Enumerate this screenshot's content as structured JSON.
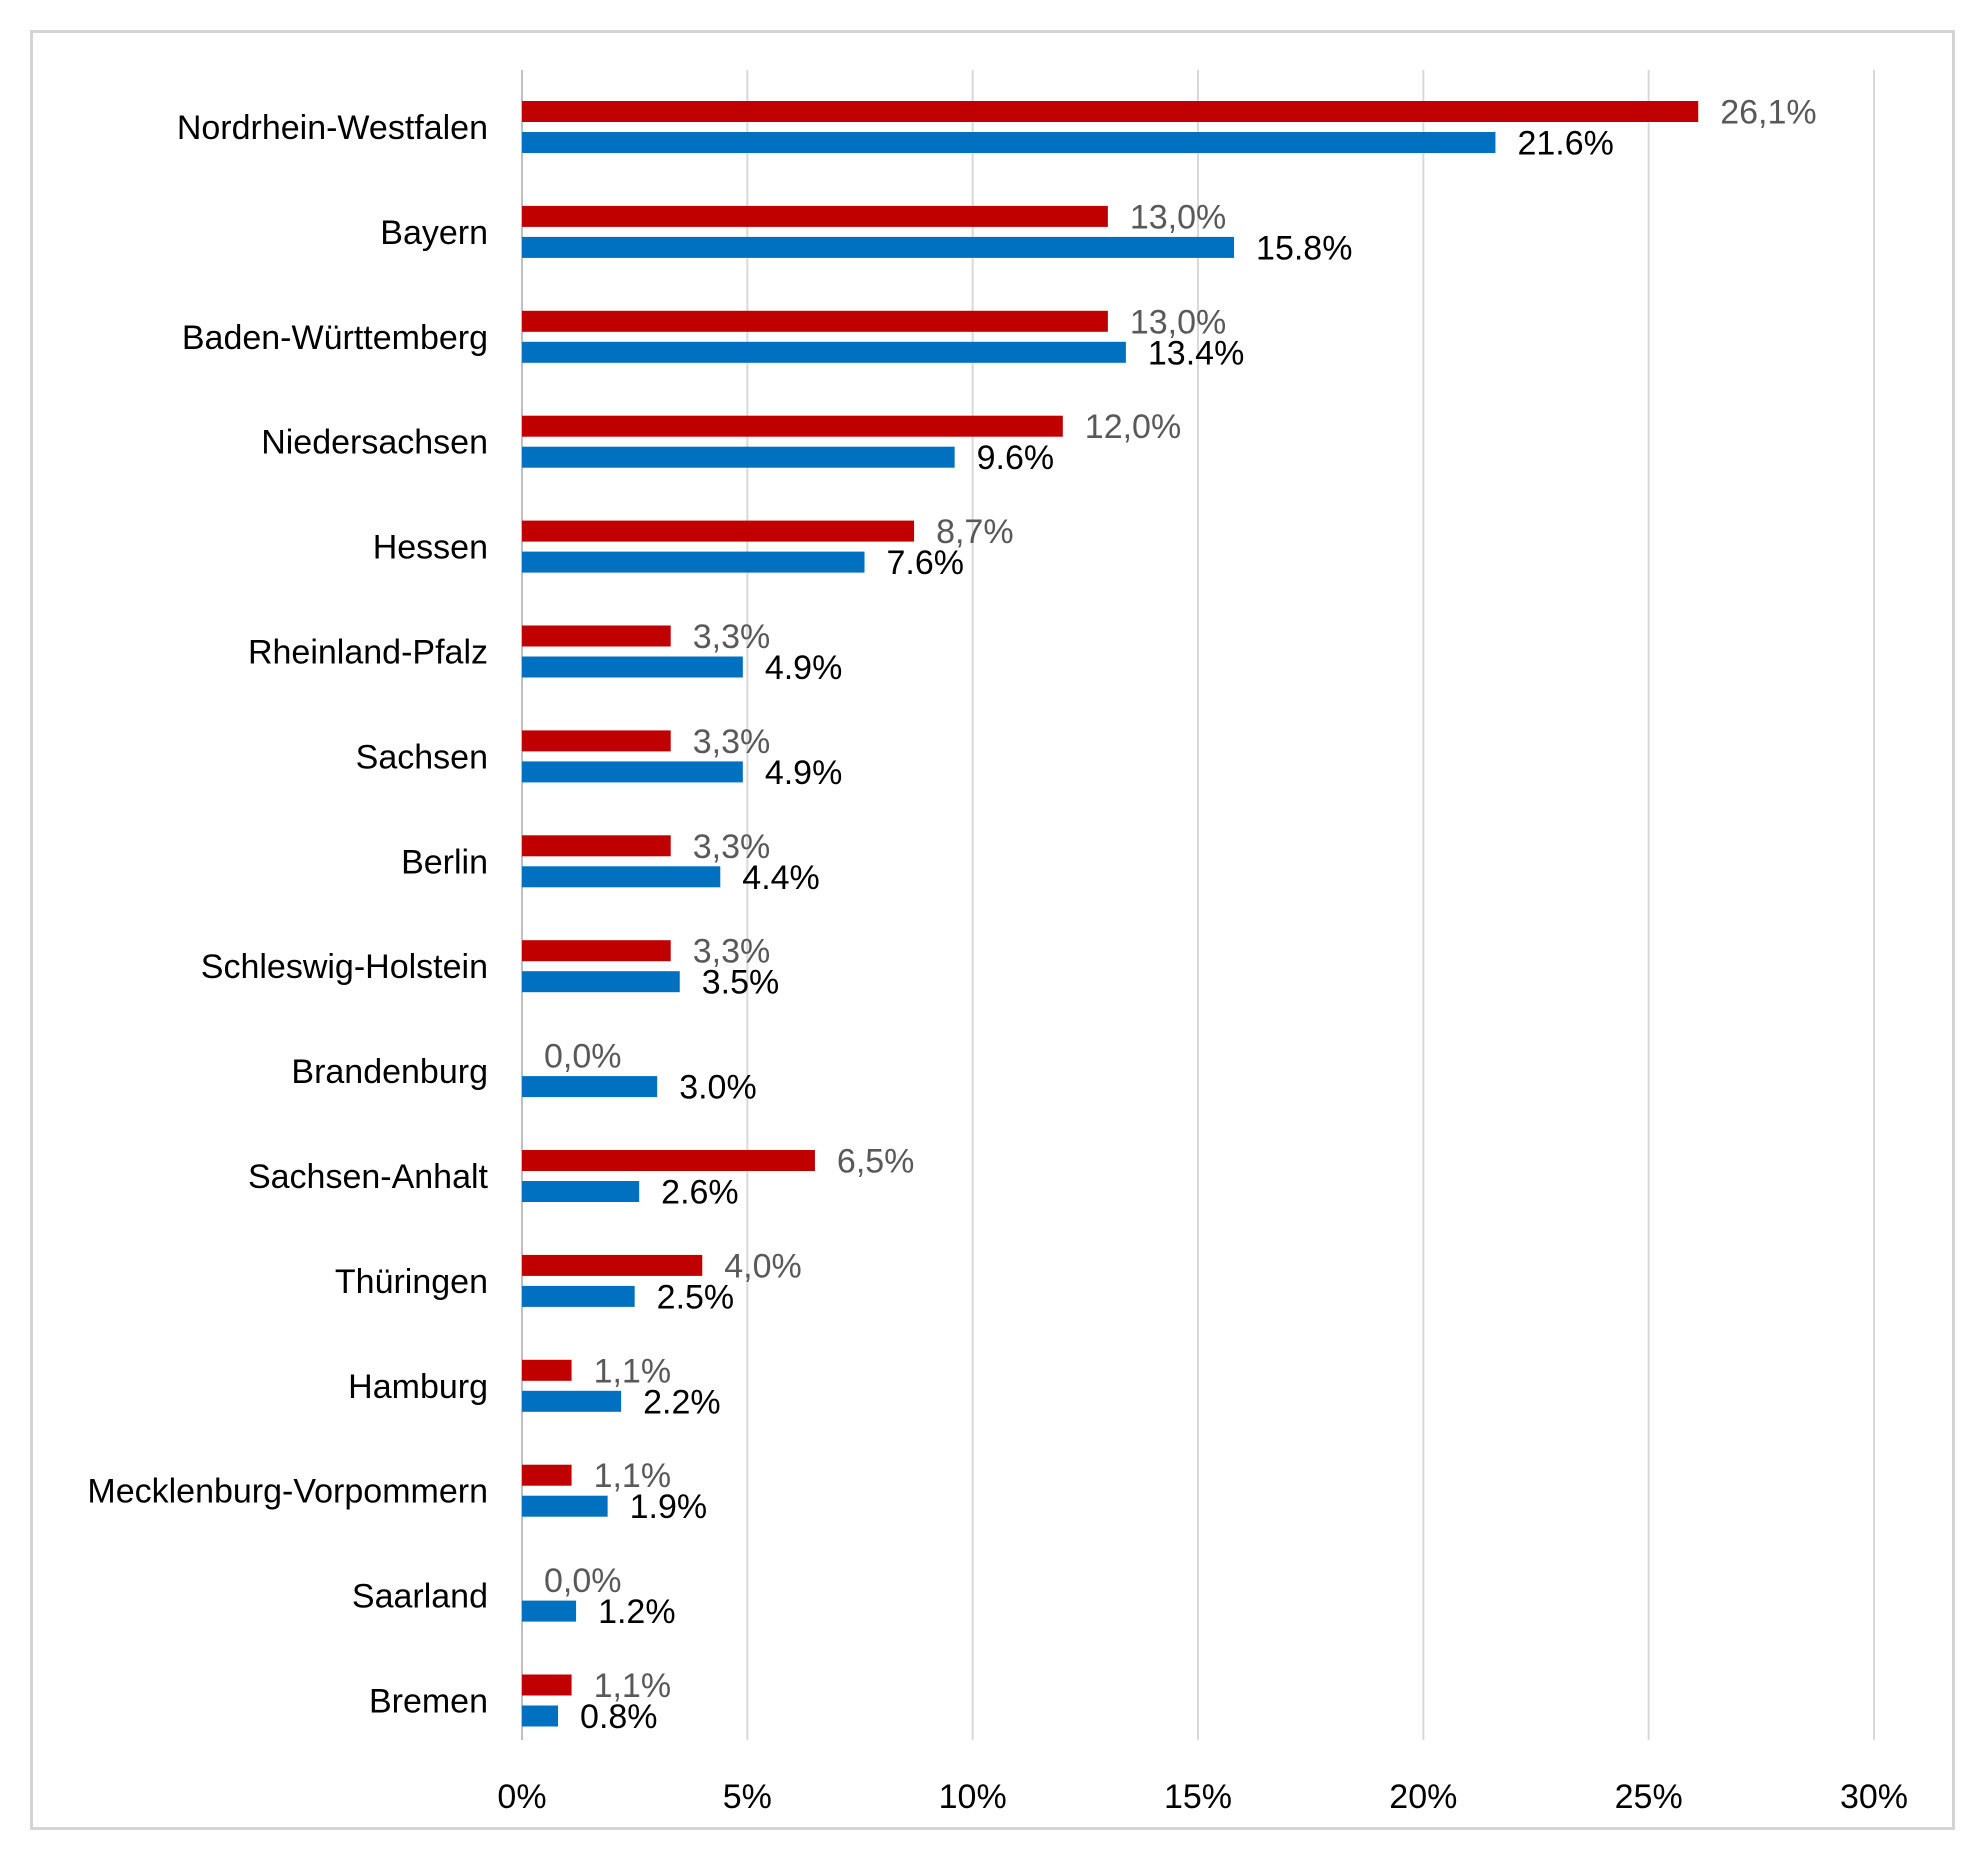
{
  "chart_data": {
    "type": "bar",
    "orientation": "horizontal",
    "categories": [
      "Nordrhein-Westfalen",
      "Bayern",
      "Baden-Württemberg",
      "Niedersachsen",
      "Hessen",
      "Rheinland-Pfalz",
      "Sachsen",
      "Berlin",
      "Schleswig-Holstein",
      "Brandenburg",
      "Sachsen-Anhalt",
      "Thüringen",
      "Hamburg",
      "Mecklenburg-Vorpommern",
      "Saarland",
      "Bremen"
    ],
    "series": [
      {
        "color": "#c00000",
        "values": [
          26.1,
          13.0,
          13.0,
          12.0,
          8.7,
          3.3,
          3.3,
          3.3,
          3.3,
          0.0,
          6.5,
          4.0,
          1.1,
          1.1,
          0.0,
          1.1
        ],
        "data_labels": [
          "26,1%",
          "13,0%",
          "13,0%",
          "12,0%",
          "8,7%",
          "3,3%",
          "3,3%",
          "3,3%",
          "3,3%",
          "0,0%",
          "6,5%",
          "4,0%",
          "1,1%",
          "1,1%",
          "0,0%",
          "1,1%"
        ]
      },
      {
        "color": "#0070c0",
        "values": [
          21.6,
          15.8,
          13.4,
          9.6,
          7.6,
          4.9,
          4.9,
          4.4,
          3.5,
          3.0,
          2.6,
          2.5,
          2.2,
          1.9,
          1.2,
          0.8
        ],
        "data_labels": [
          "21.6%",
          "15.8%",
          "13.4%",
          "9.6%",
          "7.6%",
          "4.9%",
          "4.9%",
          "4.4%",
          "3.5%",
          "3.0%",
          "2.6%",
          "2.5%",
          "2.2%",
          "1.9%",
          "1.2%",
          "0.8%"
        ]
      }
    ],
    "x_ticks": [
      "0%",
      "5%",
      "10%",
      "15%",
      "20%",
      "25%",
      "30%"
    ],
    "xlim": [
      0,
      30
    ],
    "grid": "vertical",
    "gridline_color": "#d9d9d9",
    "legend": "none"
  }
}
